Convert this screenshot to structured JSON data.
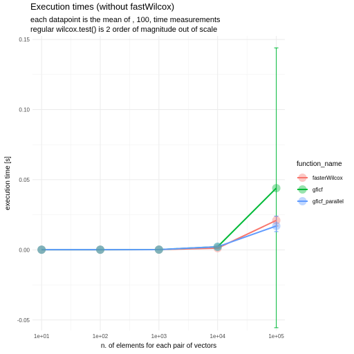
{
  "chart_data": {
    "type": "line",
    "title": "Execution times (without fastWilcox)",
    "subtitle_lines": [
      "each datapoint is the mean of , 100,  time measurements",
      " regular wilcox.test() is 2 order of magnitude out of scale"
    ],
    "xlabel": "n. of elements for each pair of vectors",
    "ylabel": "execution time [s]",
    "x_scale": "log10",
    "x": [
      10,
      100,
      1000,
      10000,
      100000
    ],
    "x_tick_labels": [
      "1e+01",
      "1e+02",
      "1e+03",
      "1e+04",
      "1e+05"
    ],
    "xlim": [
      7,
      140000
    ],
    "ylim": [
      -0.0575,
      0.1525
    ],
    "y_ticks": [
      -0.05,
      0.0,
      0.05,
      0.1,
      0.15
    ],
    "y_tick_labels": [
      "-0.05",
      "0.00",
      "0.05",
      "0.10",
      "0.15"
    ],
    "grid": true,
    "legend": {
      "title": "function_name",
      "position": "right"
    },
    "series": [
      {
        "name": "fasterWilcox",
        "color": "#F8766D",
        "values": [
          0.0001,
          0.0001,
          0.0002,
          0.0012,
          0.021
        ],
        "error_low": [
          0.0001,
          0.0001,
          0.0002,
          0.001,
          0.017
        ],
        "error_high": [
          0.0001,
          0.0001,
          0.0002,
          0.0014,
          0.024
        ]
      },
      {
        "name": "gficf",
        "color": "#00BA38",
        "values": [
          0.0001,
          0.0001,
          0.0002,
          0.0022,
          0.044
        ],
        "error_low": [
          0.0001,
          0.0001,
          0.0002,
          0.0018,
          -0.0555
        ],
        "error_high": [
          0.0001,
          0.0001,
          0.0002,
          0.0026,
          0.144
        ]
      },
      {
        "name": "gficf_parallel",
        "color": "#619CFF",
        "values": [
          0.0001,
          0.0001,
          0.0002,
          0.0022,
          0.017
        ],
        "error_low": [
          0.0001,
          0.0001,
          0.0002,
          0.0018,
          0.013
        ],
        "error_high": [
          0.0001,
          0.0001,
          0.0002,
          0.0026,
          0.024
        ]
      }
    ]
  }
}
